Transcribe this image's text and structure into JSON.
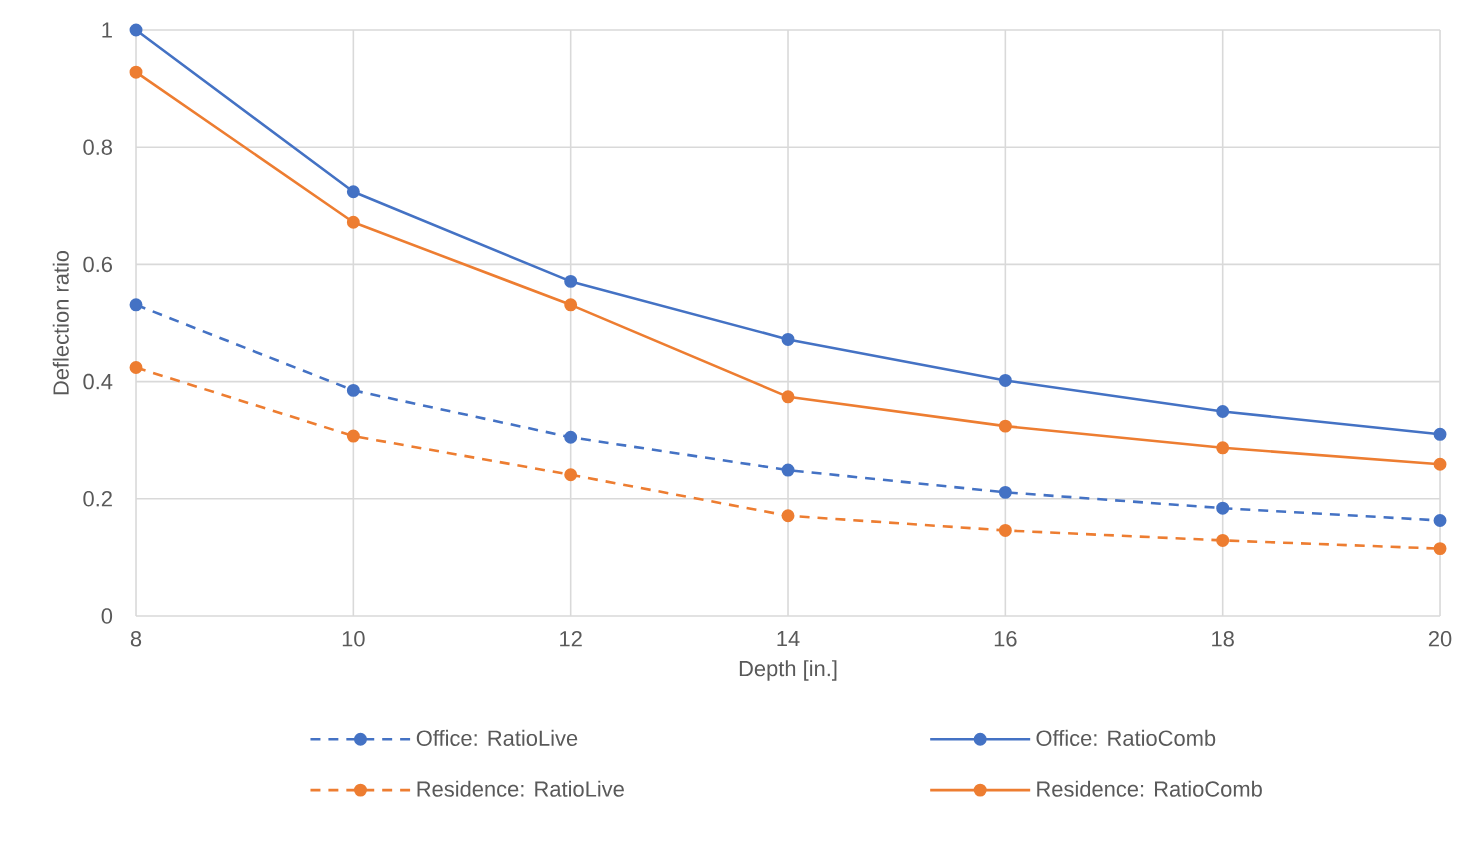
{
  "chart_data": {
    "type": "line",
    "xlabel": "Depth [in.]",
    "ylabel": "Deflection ratio",
    "x": [
      8,
      10,
      12,
      14,
      16,
      18,
      20
    ],
    "series": [
      {
        "name": "Office: RatioLive",
        "color": "#4472c4",
        "line_style": "dashed",
        "values": [
          0.531,
          0.385,
          0.305,
          0.249,
          0.211,
          0.184,
          0.163
        ]
      },
      {
        "name": "Office: RatioComb",
        "color": "#4472c4",
        "line_style": "solid",
        "values": [
          1.0,
          0.724,
          0.571,
          0.472,
          0.402,
          0.349,
          0.31
        ]
      },
      {
        "name": "Residence: RatioLive",
        "color": "#ed7d31",
        "line_style": "dashed",
        "values": [
          0.424,
          0.307,
          0.241,
          0.171,
          0.146,
          0.129,
          0.115
        ]
      },
      {
        "name": "Residence: RatioComb",
        "color": "#ed7d31",
        "line_style": "solid",
        "values": [
          0.928,
          0.672,
          0.531,
          0.374,
          0.324,
          0.287,
          0.259
        ]
      }
    ],
    "xlim": [
      8,
      20
    ],
    "ylim": [
      0,
      1
    ],
    "xticks": [
      8,
      10,
      12,
      14,
      16,
      18,
      20
    ],
    "yticks": [
      0,
      0.2,
      0.4,
      0.6,
      0.8,
      1
    ],
    "grid": true,
    "legend": "bottom",
    "marker": "circle"
  }
}
